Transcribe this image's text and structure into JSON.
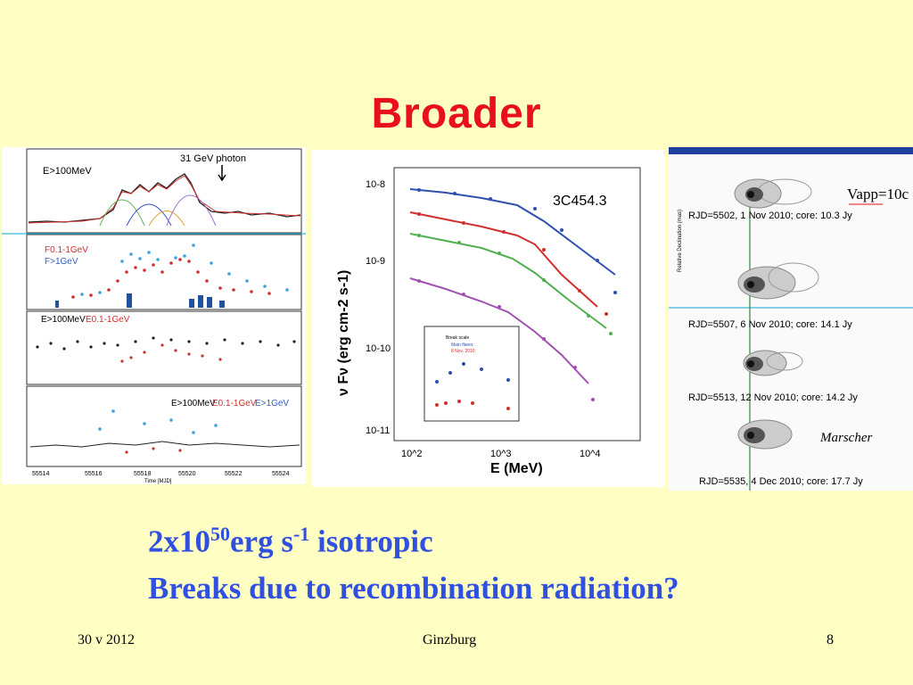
{
  "slide": {
    "title": "Broader",
    "line1_a": "2x10",
    "line1_exp": "50",
    "line1_b": "erg s",
    "line1_exp2": "-1",
    "line1_c": " isotropic",
    "line2": "Breaks due to recombination radiation?",
    "footer_date": "30 v 2012",
    "footer_center": "Ginzburg",
    "footer_page": "8"
  },
  "left_figure": {
    "lc_label": "E>100MeV",
    "photon_label": "31 GeV photon",
    "flux_label_1": "F0.1-1GeV",
    "flux_label_2": "F>1GeV",
    "index_label_1": "E>100MeV",
    "index_label_2": "E0.1-1GeV",
    "index_label_3": "E>1GeV",
    "x_ticks": [
      "55514",
      "55516",
      "55518",
      "55520",
      "55522",
      "55524"
    ],
    "x_label": "Time [MJD]"
  },
  "mid_figure": {
    "source": "3C454.3",
    "ylabel": "ν Fν (erg cm-2 s-1)",
    "xlabel": "E (MeV)",
    "y_ticks": [
      "10-8",
      "10-9",
      "10-10",
      "10-11"
    ],
    "x_ticks": [
      "10^2",
      "10^3",
      "10^4"
    ],
    "inset_legend_1": "Break scale",
    "inset_legend_2": "Main flares",
    "inset_legend_3": "8 Nov. 2010"
  },
  "right_figure": {
    "vapp_label": "Vapp=10c",
    "credit": "Marscher",
    "epochs": [
      "RJD=5502, 1 Nov 2010; core: 10.3 Jy",
      "RJD=5507, 6 Nov 2010; core: 14.1 Jy",
      "RJD=5513, 12 Nov 2010; core: 14.2 Jy",
      "RJD=5535, 4 Dec 2010; core: 17.7 Jy"
    ],
    "axis_label_dec": "Relative Declination (mas)"
  }
}
